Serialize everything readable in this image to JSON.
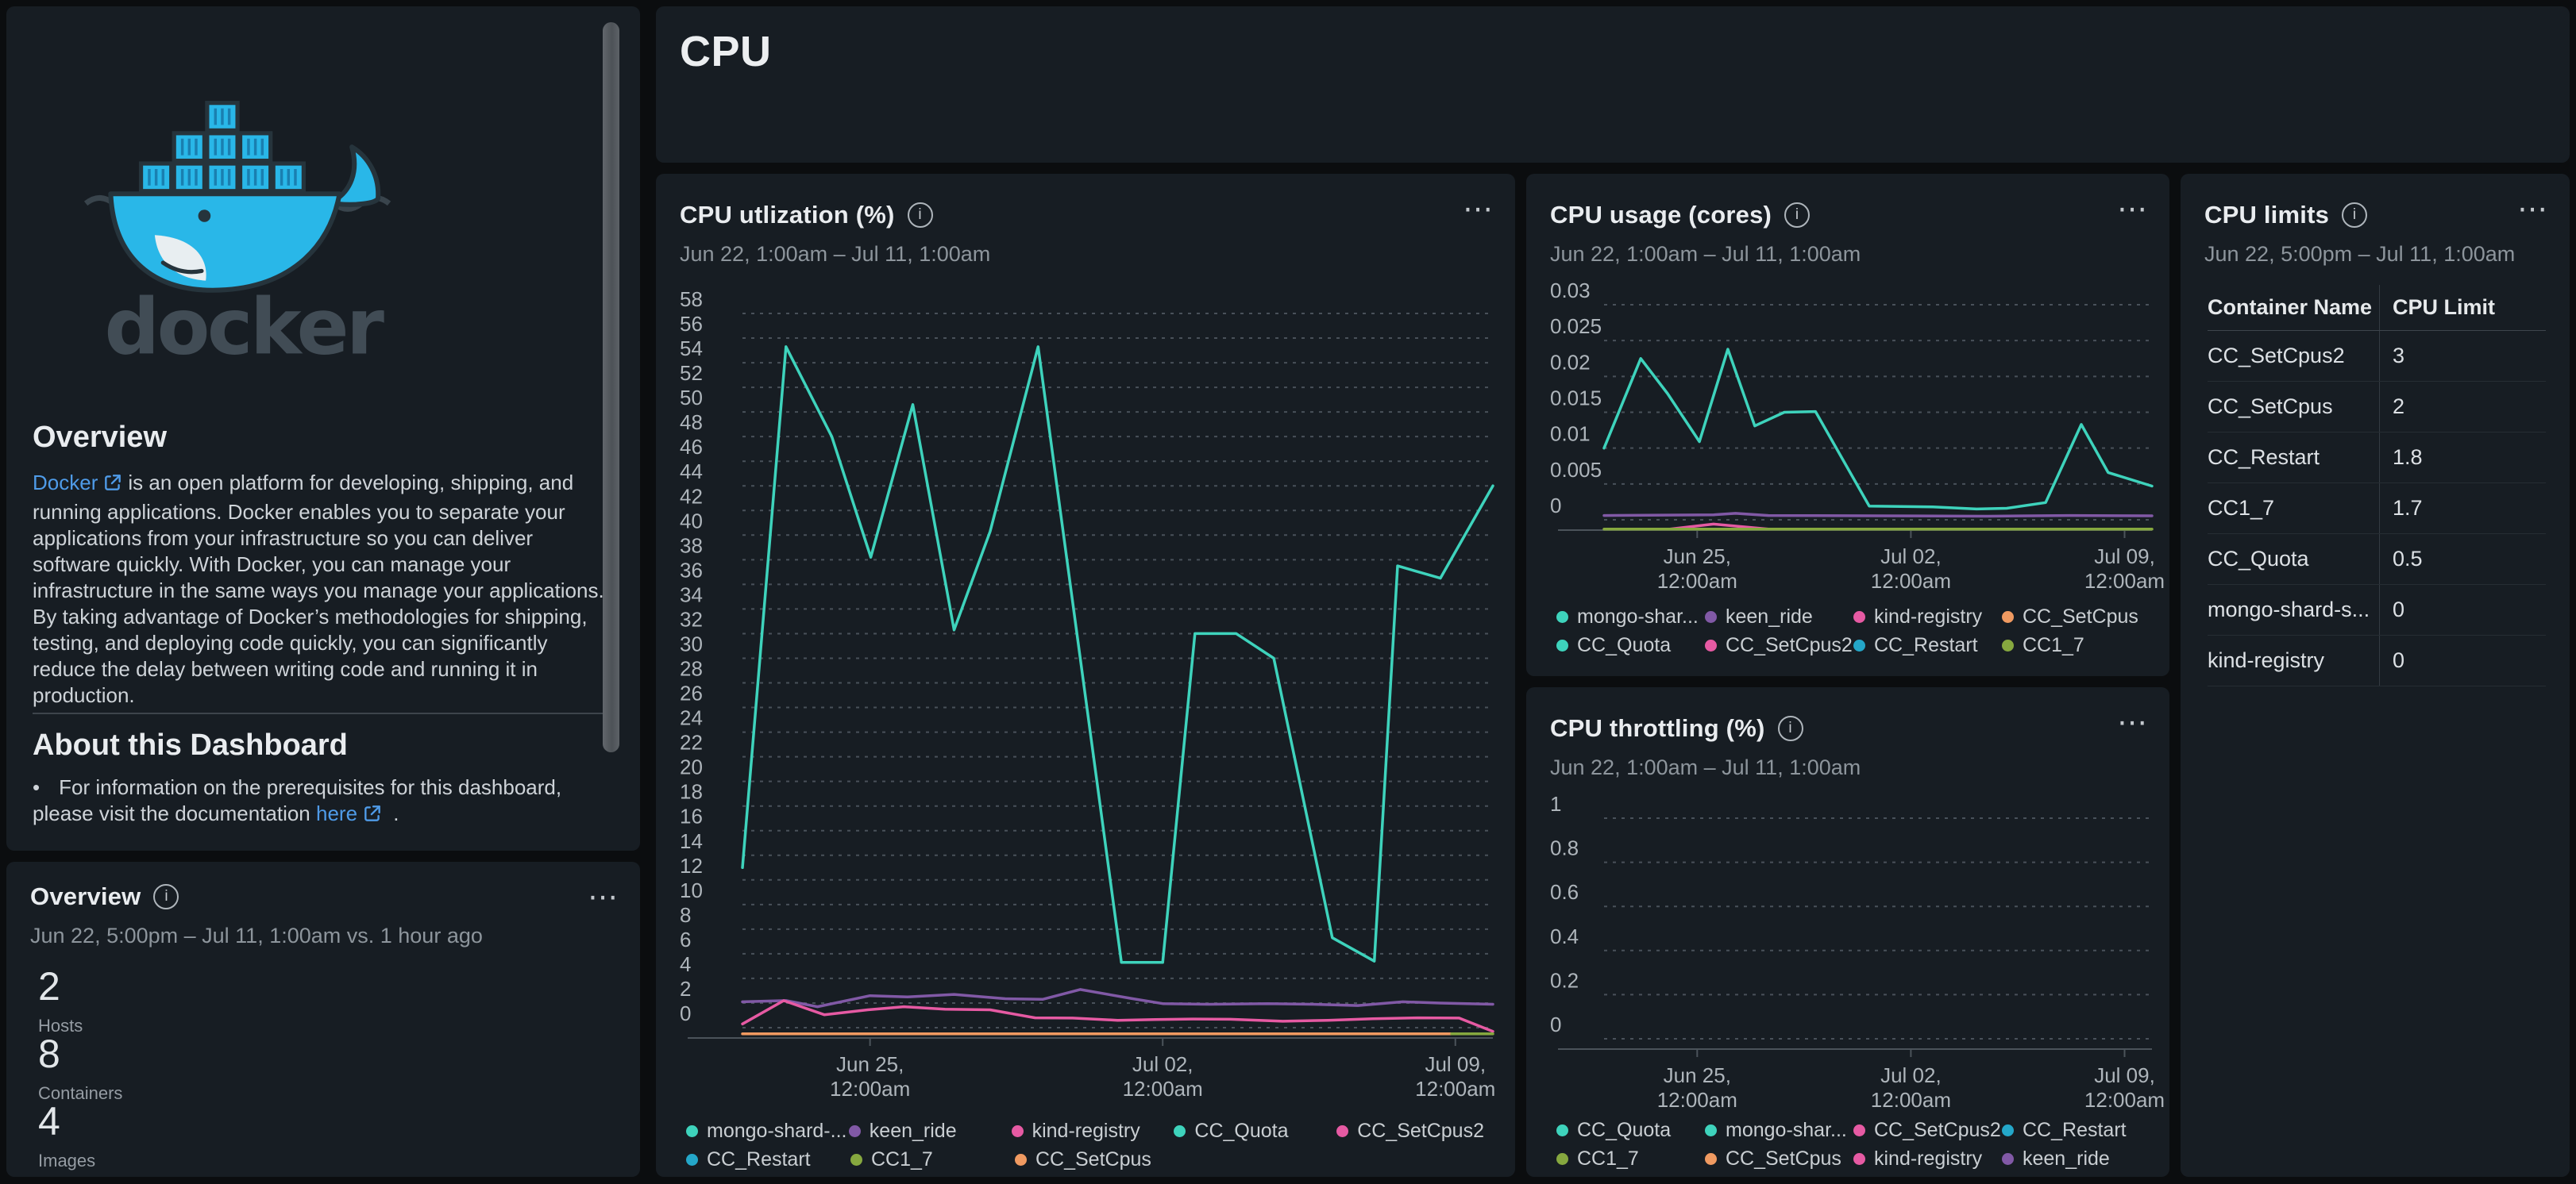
{
  "colors": {
    "background": "#0b0d0f",
    "panel": "#171d23",
    "teal": "#3ed3bc",
    "purple": "#8159a6",
    "pink": "#e65aa3",
    "orange": "#f09a61",
    "blue": "#24a7c9",
    "green": "#86a83f",
    "link": "#4f9be8",
    "docker_blue": "#29b7e8"
  },
  "icons": {
    "info": "i",
    "menu": "⋯",
    "bullet": "•"
  },
  "sidebar": {
    "logo_word": "docker",
    "overview_heading": "Overview",
    "overview_link": "Docker",
    "overview_text": "is an open platform for developing, shipping, and running applications. Docker enables you to separate your applications from your infrastructure so you can deliver software quickly. With Docker, you can manage your infrastructure in the same ways you manage your applications. By taking advantage of Docker’s methodologies for shipping, testing, and deploying code quickly, you can significantly reduce the delay between writing code and running it in production.",
    "about_heading": "About this Dashboard",
    "bullet_text": "For information on the prerequisites for this dashboard, please visit the documentation",
    "bullet_link": "here",
    "bullet_suffix": " ."
  },
  "overview_panel": {
    "title": "Overview",
    "timerange": "Jun 22, 5:00pm – Jul 11, 1:00am vs. 1 hour ago",
    "stats": [
      {
        "value": "2",
        "label": "Hosts"
      },
      {
        "value": "8",
        "label": "Containers"
      },
      {
        "value": "4",
        "label": "Images"
      }
    ]
  },
  "header": {
    "title": "CPU"
  },
  "chart_data": [
    {
      "id": "cpu-utilization",
      "type": "line",
      "title": "CPU utlization (%)",
      "timerange": "Jun 22, 1:00am – Jul 11, 1:00am",
      "ylim": [
        0,
        58
      ],
      "ytick_step": 2,
      "grid": true,
      "legend_position": "bottom",
      "xticks": [
        {
          "frac": 0.17,
          "line1": "Jun 25,",
          "line2": "12:00am"
        },
        {
          "frac": 0.56,
          "line1": "Jul 02,",
          "line2": "12:00am"
        },
        {
          "frac": 0.95,
          "line1": "Jul 09,",
          "line2": "12:00am"
        }
      ],
      "series": [
        {
          "name": "mongo-shard-...",
          "color": "#3ed3bc",
          "points": [
            [
              0,
              13
            ],
            [
              0.058,
              55.3
            ],
            [
              0.119,
              48
            ],
            [
              0.171,
              38.2
            ],
            [
              0.227,
              50.6
            ],
            [
              0.282,
              32.3
            ],
            [
              0.33,
              40.3
            ],
            [
              0.394,
              55.3
            ],
            [
              0.505,
              5.3
            ],
            [
              0.56,
              5.3
            ],
            [
              0.603,
              32
            ],
            [
              0.658,
              32
            ],
            [
              0.708,
              30
            ],
            [
              0.786,
              7.3
            ],
            [
              0.842,
              5.4
            ],
            [
              0.873,
              37.5
            ],
            [
              0.93,
              36.5
            ],
            [
              1,
              44
            ]
          ]
        },
        {
          "name": "keen_ride",
          "color": "#8159a6",
          "points": [
            [
              0,
              2.1
            ],
            [
              0.058,
              2.2
            ],
            [
              0.1,
              1.7
            ],
            [
              0.17,
              2.6
            ],
            [
              0.22,
              2.5
            ],
            [
              0.282,
              2.7
            ],
            [
              0.35,
              2.35
            ],
            [
              0.4,
              2.3
            ],
            [
              0.45,
              3.1
            ],
            [
              0.52,
              2.35
            ],
            [
              0.56,
              1.95
            ],
            [
              0.62,
              1.9
            ],
            [
              0.7,
              1.95
            ],
            [
              0.76,
              1.9
            ],
            [
              0.82,
              1.8
            ],
            [
              0.88,
              2.1
            ],
            [
              0.93,
              2.0
            ],
            [
              1,
              1.9
            ]
          ]
        },
        {
          "name": "kind-registry",
          "color": "#e65aa3",
          "points": [
            [
              0,
              0.3
            ],
            [
              0.055,
              2.2
            ],
            [
              0.109,
              1.05
            ],
            [
              0.167,
              1.45
            ],
            [
              0.215,
              1.7
            ],
            [
              0.27,
              1.5
            ],
            [
              0.33,
              1.45
            ],
            [
              0.39,
              0.8
            ],
            [
              0.44,
              0.78
            ],
            [
              0.5,
              0.6
            ],
            [
              0.55,
              0.66
            ],
            [
              0.6,
              0.7
            ],
            [
              0.65,
              0.68
            ],
            [
              0.72,
              0.52
            ],
            [
              0.78,
              0.6
            ],
            [
              0.84,
              0.72
            ],
            [
              0.9,
              0.8
            ],
            [
              0.955,
              0.78
            ],
            [
              1,
              -0.3
            ]
          ]
        },
        {
          "name": "CC_SetCpus",
          "color": "#f09a61",
          "points": [
            [
              0,
              -0.5
            ],
            [
              0.945,
              -0.5
            ]
          ]
        },
        {
          "name": "CC1_7",
          "color": "#86a83f",
          "points": [
            [
              0.945,
              -0.5
            ],
            [
              1,
              -0.5
            ]
          ]
        }
      ],
      "legend_rows": [
        [
          {
            "label": "mongo-shard-...",
            "color": "#3ed3bc"
          },
          {
            "label": "keen_ride",
            "color": "#8159a6"
          },
          {
            "label": "kind-registry",
            "color": "#e65aa3"
          },
          {
            "label": "CC_Quota",
            "color": "#3ed3bc"
          },
          {
            "label": "CC_SetCpus2",
            "color": "#e65aa3"
          }
        ],
        [
          {
            "label": "CC_Restart",
            "color": "#24a7c9"
          },
          {
            "label": "CC1_7",
            "color": "#86a83f"
          },
          {
            "label": "CC_SetCpus",
            "color": "#f09a61"
          }
        ]
      ]
    },
    {
      "id": "cpu-usage-cores",
      "type": "line",
      "title": "CPU usage (cores)",
      "timerange": "Jun 22, 1:00am – Jul 11, 1:00am",
      "ylim": [
        0,
        0.03
      ],
      "ytick_step": 0.005,
      "grid": true,
      "legend_position": "bottom",
      "xticks": [
        {
          "frac": 0.17,
          "line1": "Jun 25,",
          "line2": "12:00am"
        },
        {
          "frac": 0.56,
          "line1": "Jul 02,",
          "line2": "12:00am"
        },
        {
          "frac": 0.95,
          "line1": "Jul 09,",
          "line2": "12:00am"
        }
      ],
      "series": [
        {
          "name": "mongo-shar...",
          "color": "#3ed3bc",
          "points": [
            [
              0,
              0.01
            ],
            [
              0.067,
              0.0225
            ],
            [
              0.116,
              0.0176
            ],
            [
              0.174,
              0.0109
            ],
            [
              0.226,
              0.0238
            ],
            [
              0.275,
              0.0131
            ],
            [
              0.329,
              0.015
            ],
            [
              0.386,
              0.0151
            ],
            [
              0.484,
              0.0019
            ],
            [
              0.6,
              0.0018
            ],
            [
              0.68,
              0.0015
            ],
            [
              0.735,
              0.0016
            ],
            [
              0.806,
              0.0024
            ],
            [
              0.871,
              0.0133
            ],
            [
              0.92,
              0.0066
            ],
            [
              1,
              0.0047
            ]
          ]
        },
        {
          "name": "keen_ride",
          "color": "#8159a6",
          "points": [
            [
              0,
              0.0006
            ],
            [
              0.2,
              0.0007
            ],
            [
              0.24,
              0.0009
            ],
            [
              0.3,
              0.0006
            ],
            [
              0.5,
              0.00055
            ],
            [
              0.7,
              0.0005
            ],
            [
              0.85,
              0.0006
            ],
            [
              1,
              0.00055
            ]
          ]
        },
        {
          "name": "kind-registry",
          "color": "#e65aa3",
          "points": [
            [
              0.12,
              -0.0013
            ],
            [
              0.2,
              -0.0006
            ],
            [
              0.3,
              -0.0013
            ]
          ]
        },
        {
          "name": "CC1_7",
          "color": "#86a83f",
          "points": [
            [
              0,
              -0.0013
            ],
            [
              1,
              -0.0013
            ]
          ]
        }
      ],
      "legend_rows": [
        [
          {
            "label": "mongo-shar...",
            "color": "#3ed3bc"
          },
          {
            "label": "keen_ride",
            "color": "#8159a6"
          },
          {
            "label": "kind-registry",
            "color": "#e65aa3"
          },
          {
            "label": "CC_SetCpus",
            "color": "#f09a61"
          }
        ],
        [
          {
            "label": "CC_Quota",
            "color": "#3ed3bc"
          },
          {
            "label": "CC_SetCpus2",
            "color": "#e65aa3"
          },
          {
            "label": "CC_Restart",
            "color": "#24a7c9"
          },
          {
            "label": "CC1_7",
            "color": "#86a83f"
          }
        ]
      ]
    },
    {
      "id": "cpu-throttling",
      "type": "line",
      "title": "CPU throttling (%)",
      "timerange": "Jun 22, 1:00am – Jul 11, 1:00am",
      "ylim": [
        0,
        1
      ],
      "ytick_step": 0.2,
      "grid": true,
      "legend_position": "bottom",
      "xticks": [
        {
          "frac": 0.17,
          "line1": "Jun 25,",
          "line2": "12:00am"
        },
        {
          "frac": 0.56,
          "line1": "Jul 02,",
          "line2": "12:00am"
        },
        {
          "frac": 0.95,
          "line1": "Jul 09,",
          "line2": "12:00am"
        }
      ],
      "series": [],
      "legend_rows": [
        [
          {
            "label": "CC_Quota",
            "color": "#3ed3bc"
          },
          {
            "label": "mongo-shar...",
            "color": "#3ed3bc"
          },
          {
            "label": "CC_SetCpus2",
            "color": "#e65aa3"
          },
          {
            "label": "CC_Restart",
            "color": "#24a7c9"
          }
        ],
        [
          {
            "label": "CC1_7",
            "color": "#86a83f"
          },
          {
            "label": "CC_SetCpus",
            "color": "#f09a61"
          },
          {
            "label": "kind-registry",
            "color": "#e65aa3"
          },
          {
            "label": "keen_ride",
            "color": "#8159a6"
          }
        ]
      ]
    }
  ],
  "limits_table": {
    "type": "table",
    "title": "CPU limits",
    "timerange": "Jun 22, 5:00pm – Jul 11, 1:00am",
    "columns": [
      "Container Name",
      "CPU Limit"
    ],
    "rows": [
      [
        "CC_SetCpus2",
        "3"
      ],
      [
        "CC_SetCpus",
        "2"
      ],
      [
        "CC_Restart",
        "1.8"
      ],
      [
        "CC1_7",
        "1.7"
      ],
      [
        "CC_Quota",
        "0.5"
      ],
      [
        "mongo-shard-s...",
        "0"
      ],
      [
        "kind-registry",
        "0"
      ]
    ]
  }
}
